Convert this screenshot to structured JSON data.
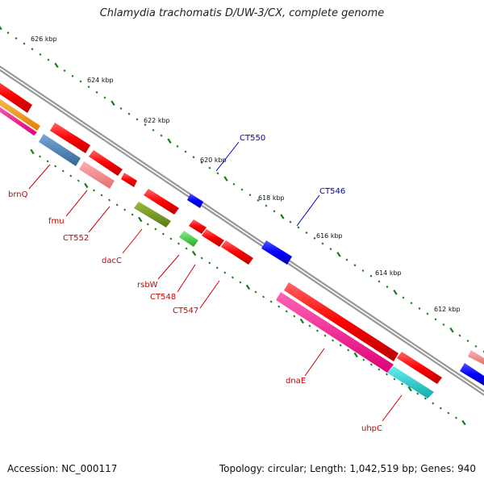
{
  "title": "Chlamydia trachomatis D/UW-3/CX, complete genome",
  "footer": {
    "accession": "Accession: NC_000117",
    "summary": "Topology: circular; Length: 1,042,519 bp; Genes: 940"
  },
  "ticks": [
    "626 kbp",
    "624 kbp",
    "622 kbp",
    "620 kbp",
    "618 kbp",
    "616 kbp",
    "614 kbp",
    "612 kbp"
  ],
  "genes": [
    {
      "label": "CT550",
      "color": "#0000cc"
    },
    {
      "label": "CT546",
      "color": "#0000cc"
    },
    {
      "label": "brnQ",
      "color": "#cc0000"
    },
    {
      "label": "fmu",
      "color": "#cc0000"
    },
    {
      "label": "CT552",
      "color": "#cc0000"
    },
    {
      "label": "dacC",
      "color": "#cc0000"
    },
    {
      "label": "rsbW",
      "color": "#cc0000"
    },
    {
      "label": "CT548",
      "color": "#cc0000"
    },
    {
      "label": "CT547",
      "color": "#cc0000"
    },
    {
      "label": "dnaE",
      "color": "#cc0000"
    },
    {
      "label": "uhpC",
      "color": "#cc0000"
    }
  ],
  "colors": {
    "backbone": "#8a8a8a",
    "tick": "#1a7a1a",
    "forward_strand": "#ff0000",
    "reverse_strand_blue": "#0000ff",
    "olive": "#6b8e23",
    "green": "#33cc33",
    "pink": "#ff1493",
    "steelblue": "#4682b4",
    "salmon": "#f08080",
    "cyan": "#20c8c8",
    "orange": "#ff9900"
  }
}
